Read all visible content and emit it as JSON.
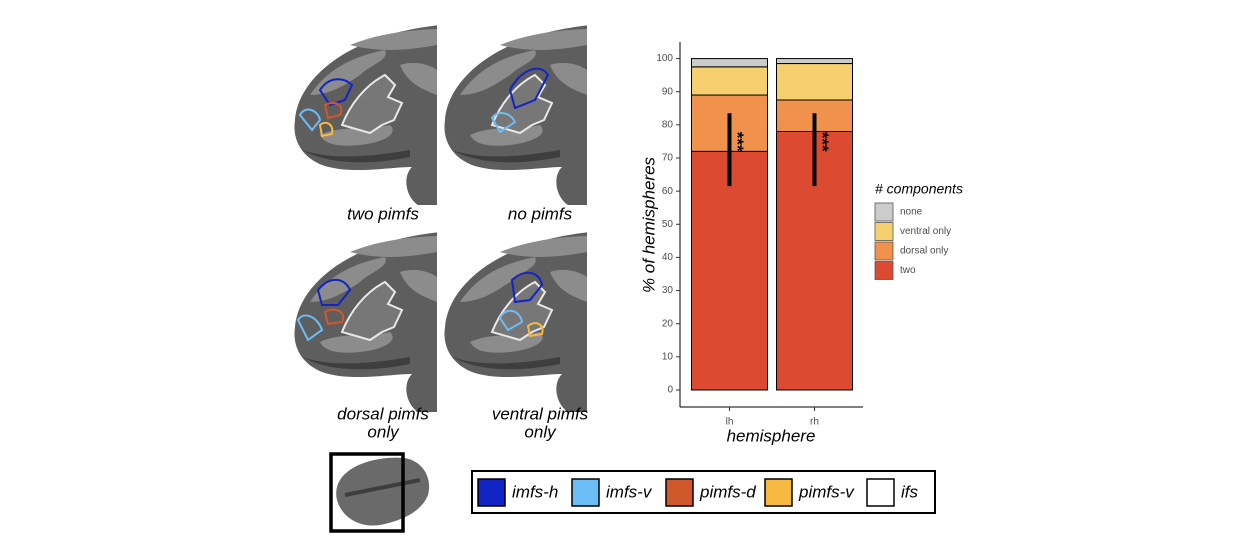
{
  "figure": {
    "panel_labels": [
      [
        "two pimfs"
      ],
      [
        "no pimfs"
      ],
      [
        "dorsal pimfs",
        "only"
      ],
      [
        "ventral pimfs",
        "only"
      ]
    ],
    "sulci_legend": [
      {
        "label": "imfs-h",
        "color": "#1224c4"
      },
      {
        "label": "imfs-v",
        "color": "#6cbcf6"
      },
      {
        "label": "pimfs-d",
        "color": "#d0582a"
      },
      {
        "label": "pimfs-v",
        "color": "#f7b942"
      },
      {
        "label": "ifs",
        "color": "#ffffff"
      }
    ]
  },
  "chart_data": {
    "type": "bar",
    "stacked": true,
    "categories": [
      "lh",
      "rh"
    ],
    "series": [
      {
        "name": "two",
        "color": "#dc4a32",
        "values": [
          72,
          78
        ]
      },
      {
        "name": "dorsal only",
        "color": "#f0924c",
        "values": [
          17,
          9.5
        ]
      },
      {
        "name": "ventral only",
        "color": "#f6d06f",
        "values": [
          8.5,
          11
        ]
      },
      {
        "name": "none",
        "color": "#cccccc",
        "values": [
          2.5,
          1.5
        ]
      }
    ],
    "error_low": [
      61.5,
      61.5
    ],
    "error_high": [
      83.5,
      83.5
    ],
    "annotations": [
      "***",
      "***"
    ],
    "ylim": [
      0,
      105
    ],
    "yticks": [
      0,
      10,
      20,
      30,
      40,
      50,
      60,
      70,
      80,
      90,
      100
    ],
    "xlabel": "hemisphere",
    "ylabel": "% of hemispheres",
    "legend_title": "# components",
    "legend_position": "right"
  }
}
